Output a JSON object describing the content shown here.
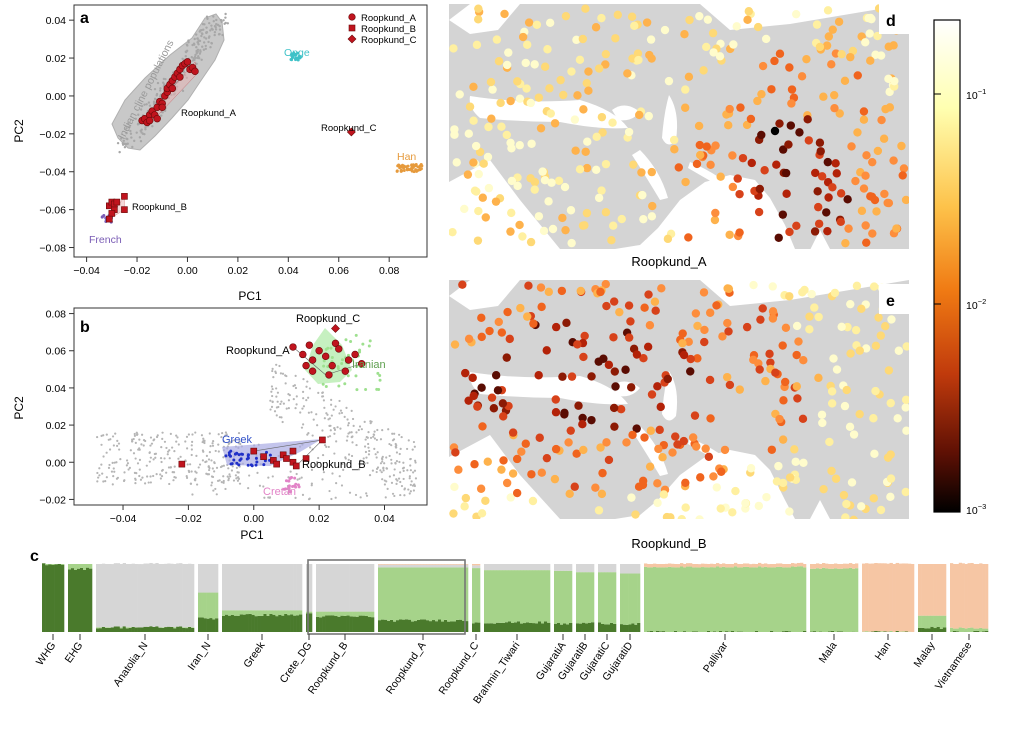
{
  "panel_labels": {
    "a": "a",
    "b": "b",
    "c": "c",
    "d": "d",
    "e": "e"
  },
  "colors": {
    "roopkund": "#c0141e",
    "onge": "#3fc2c8",
    "han": "#e69a3c",
    "french": "#7a5cb5",
    "greek": "#2030c8",
    "cretan": "#e283c7",
    "iranian": "#9ee08f",
    "background": "#b9b9b9",
    "dark_green": "#4a7a2c",
    "light_green": "#a6d38a",
    "peach": "#f6c6a4",
    "land": "#d4d4d4"
  },
  "chart_data": [
    {
      "id": "a",
      "type": "scatter",
      "xlabel": "PC1",
      "ylabel": "PC2",
      "xlim": [
        -0.045,
        0.095
      ],
      "ylim": [
        -0.085,
        0.048
      ],
      "xticks": [
        -0.04,
        -0.02,
        0.0,
        0.02,
        0.04,
        0.06,
        0.08
      ],
      "yticks": [
        0.04,
        0.02,
        0.0,
        -0.02,
        -0.04,
        -0.06,
        -0.08
      ],
      "tick_labels_x": [
        "−0.04",
        "−0.02",
        "0.00",
        "0.02",
        "0.04",
        "0.06",
        "0.08"
      ],
      "tick_labels_y": [
        "0.04",
        "0.02",
        "0.00",
        "−0.02",
        "−0.04",
        "−0.06",
        "−0.08"
      ],
      "legend": [
        "Roopkund_A",
        "Roopkund_B",
        "Roopkund_C"
      ],
      "legend_position": "top-right",
      "annotations": {
        "cline": "Indian cline populations",
        "onge": "Onge",
        "han": "Han",
        "french": "French",
        "ra": "Roopkund_A",
        "rb": "Roopkund_B",
        "rc": "Roopkund_C"
      },
      "series": [
        {
          "name": "Roopkund_A",
          "marker": "circle",
          "points": [
            [
              -0.018,
              -0.013
            ],
            [
              -0.017,
              -0.012
            ],
            [
              -0.016,
              -0.014
            ],
            [
              -0.015,
              -0.01
            ],
            [
              -0.014,
              -0.008
            ],
            [
              -0.013,
              -0.01
            ],
            [
              -0.012,
              -0.012
            ],
            [
              -0.012,
              -0.006
            ],
            [
              -0.011,
              -0.003
            ],
            [
              -0.01,
              -0.004
            ],
            [
              -0.009,
              0.0
            ],
            [
              -0.008,
              0.002
            ],
            [
              -0.008,
              0.004
            ],
            [
              -0.007,
              0.006
            ],
            [
              -0.006,
              0.008
            ],
            [
              -0.005,
              0.01
            ],
            [
              -0.004,
              0.012
            ],
            [
              -0.003,
              0.014
            ],
            [
              -0.002,
              0.016
            ],
            [
              -0.001,
              0.017
            ],
            [
              0.0,
              0.018
            ],
            [
              0.001,
              0.014
            ],
            [
              0.002,
              0.015
            ],
            [
              0.003,
              0.013
            ],
            [
              -0.003,
              0.01
            ],
            [
              -0.01,
              -0.006
            ],
            [
              -0.015,
              -0.013
            ],
            [
              -0.006,
              0.004
            ]
          ]
        },
        {
          "name": "Roopkund_B",
          "marker": "square",
          "points": [
            [
              -0.031,
              -0.058
            ],
            [
              -0.03,
              -0.056
            ],
            [
              -0.029,
              -0.06
            ],
            [
              -0.03,
              -0.062
            ],
            [
              -0.031,
              -0.065
            ],
            [
              -0.029,
              -0.057
            ],
            [
              -0.028,
              -0.056
            ],
            [
              -0.025,
              -0.053
            ],
            [
              -0.025,
              -0.06
            ]
          ]
        },
        {
          "name": "Roopkund_C",
          "marker": "diamond",
          "points": [
            [
              0.065,
              -0.019
            ]
          ]
        }
      ]
    },
    {
      "id": "b",
      "type": "scatter",
      "xlabel": "PC1",
      "ylabel": "PC2",
      "xlim": [
        -0.055,
        0.053
      ],
      "ylim": [
        -0.023,
        0.083
      ],
      "xticks": [
        -0.04,
        -0.02,
        0.0,
        0.02,
        0.04
      ],
      "yticks": [
        0.08,
        0.06,
        0.04,
        0.02,
        0.0,
        -0.02
      ],
      "tick_labels_x": [
        "−0.04",
        "−0.02",
        "0.00",
        "0.02",
        "0.04"
      ],
      "tick_labels_y": [
        "0.08",
        "0.06",
        "0.04",
        "0.02",
        "0.00",
        "−0.02"
      ],
      "annotations": {
        "rc": "Roopkund_C",
        "ra": "Roopkund_A",
        "iranian": "Iranian",
        "greek": "Greek",
        "rb": "Roopkund_B",
        "cretan": "Cretan"
      },
      "series": [
        {
          "name": "Roopkund_A",
          "marker": "circle",
          "points": [
            [
              0.012,
              0.062
            ],
            [
              0.015,
              0.058
            ],
            [
              0.017,
              0.063
            ],
            [
              0.018,
              0.055
            ],
            [
              0.02,
              0.06
            ],
            [
              0.022,
              0.057
            ],
            [
              0.025,
              0.064
            ],
            [
              0.026,
              0.061
            ],
            [
              0.024,
              0.052
            ],
            [
              0.028,
              0.049
            ],
            [
              0.029,
              0.055
            ],
            [
              0.031,
              0.058
            ],
            [
              0.033,
              0.053
            ],
            [
              0.018,
              0.049
            ],
            [
              0.023,
              0.047
            ],
            [
              0.016,
              0.052
            ]
          ]
        },
        {
          "name": "Roopkund_C",
          "marker": "diamond",
          "points": [
            [
              0.025,
              0.072
            ]
          ]
        },
        {
          "name": "Roopkund_B",
          "marker": "square",
          "points": [
            [
              -0.022,
              -0.001
            ],
            [
              0.0,
              0.006
            ],
            [
              0.003,
              0.003
            ],
            [
              0.006,
              0.001
            ],
            [
              0.007,
              -0.001
            ],
            [
              0.009,
              0.004
            ],
            [
              0.01,
              0.002
            ],
            [
              0.012,
              0.0
            ],
            [
              0.013,
              -0.002
            ],
            [
              0.016,
              0.002
            ],
            [
              0.012,
              0.006
            ],
            [
              0.021,
              0.012
            ]
          ]
        }
      ]
    },
    {
      "id": "c",
      "type": "bar",
      "stacked": true,
      "components": [
        "dark_green",
        "light_green",
        "grey",
        "peach"
      ],
      "categories": [
        "WHG",
        "EHG",
        "Anatolia_N",
        "Iran_N",
        "Greek",
        "Crete_DG",
        "Roopkund_B",
        "Roopkund_A",
        "Roopkund_C",
        "Brahmin_Tiwari",
        "GujaratiA",
        "GujaratiB",
        "GujaratiC",
        "GujaratiD",
        "Palliyar",
        "Mala",
        "Han",
        "Malay",
        "Vietnamese"
      ],
      "values": [
        [
          1.0,
          0.0,
          0.0,
          0.0
        ],
        [
          0.93,
          0.07,
          0.0,
          0.0
        ],
        [
          0.07,
          0.0,
          0.93,
          0.0
        ],
        [
          0.2,
          0.38,
          0.42,
          0.0
        ],
        [
          0.25,
          0.07,
          0.68,
          0.0
        ],
        [
          0.27,
          0.03,
          0.7,
          0.0
        ],
        [
          0.23,
          0.07,
          0.7,
          0.0
        ],
        [
          0.17,
          0.78,
          0.04,
          0.01
        ],
        [
          0.14,
          0.8,
          0.04,
          0.02
        ],
        [
          0.14,
          0.77,
          0.09,
          0.0
        ],
        [
          0.12,
          0.78,
          0.1,
          0.0
        ],
        [
          0.13,
          0.75,
          0.12,
          0.0
        ],
        [
          0.13,
          0.75,
          0.12,
          0.0
        ],
        [
          0.12,
          0.74,
          0.14,
          0.0
        ],
        [
          0.0,
          0.95,
          0.0,
          0.05
        ],
        [
          0.0,
          0.93,
          0.0,
          0.07
        ],
        [
          0.0,
          0.0,
          0.0,
          1.0
        ],
        [
          0.06,
          0.18,
          0.0,
          0.76
        ],
        [
          0.0,
          0.05,
          0.0,
          0.95
        ]
      ]
    },
    {
      "id": "d",
      "type": "heatmap",
      "title": "Roopkund_A",
      "focus": "South Asia"
    },
    {
      "id": "e",
      "type": "heatmap",
      "title": "Roopkund_B",
      "focus": "Mediterranean"
    },
    {
      "id": "colorbar",
      "type": "heatmap",
      "scale": "log",
      "range": [
        0.001,
        0.25
      ],
      "tick_values": [
        0.1,
        0.01,
        0.001
      ],
      "tick_labels": {
        "t1": "10",
        "e1": "−1",
        "t2": "10",
        "e2": "−2",
        "t3": "10",
        "e3": "−3"
      }
    }
  ]
}
